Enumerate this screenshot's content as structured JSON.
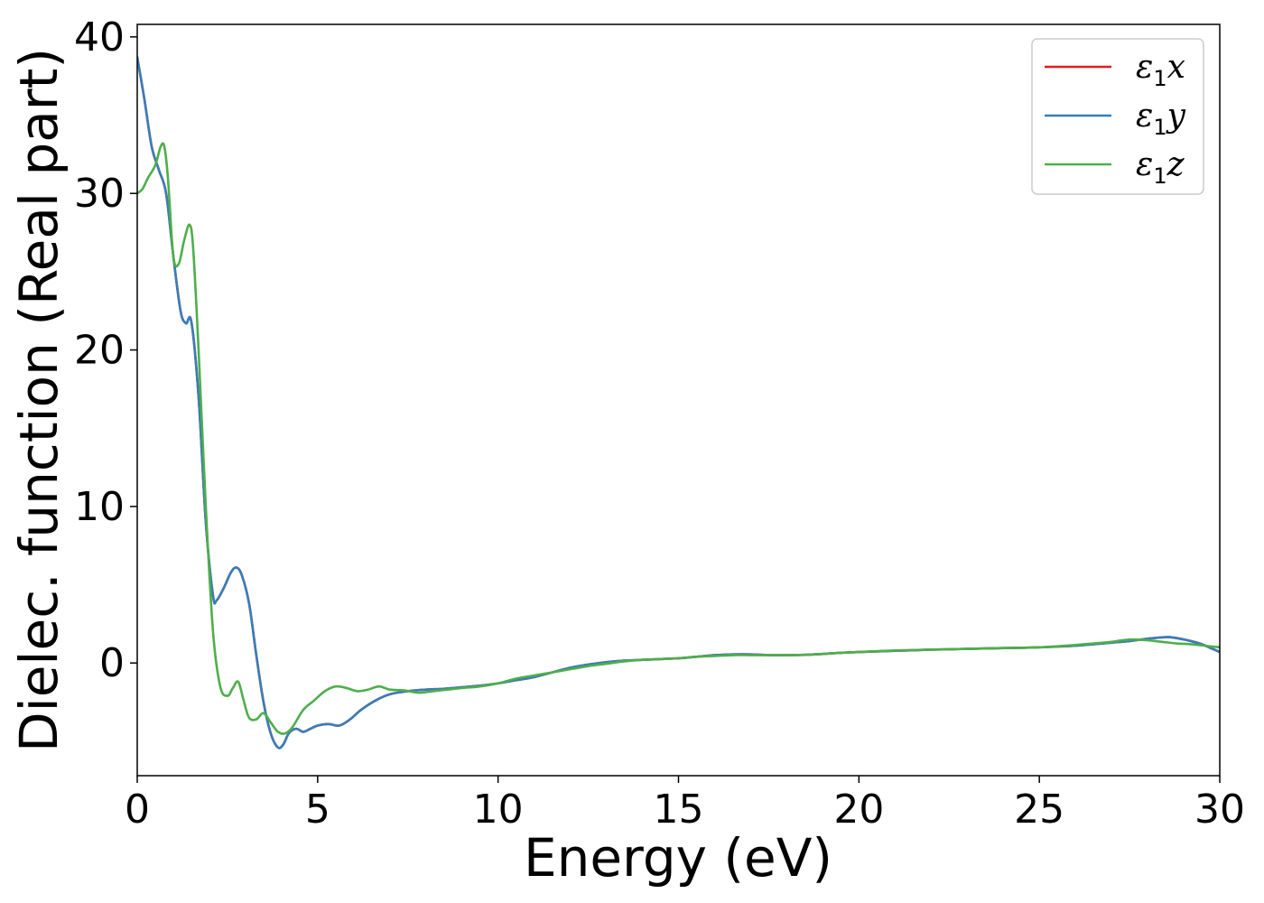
{
  "chart_data": {
    "type": "line",
    "title": "",
    "xlabel": "Energy (eV)",
    "ylabel": "Dielec. function (Real part)",
    "xlim": [
      0,
      30
    ],
    "ylim": [
      -7.2,
      40.8
    ],
    "xticks": [
      0,
      5,
      10,
      15,
      20,
      25,
      30
    ],
    "yticks": [
      0,
      10,
      20,
      30,
      40
    ],
    "grid": false,
    "legend_position": "top-right",
    "series": [
      {
        "name": "ε₁x",
        "legend_base": "ε",
        "legend_sub": "1",
        "legend_var": "x",
        "color": "#e41a1c",
        "x": [
          0,
          0.2,
          0.4,
          0.6,
          0.8,
          1.0,
          1.2,
          1.35,
          1.5,
          1.7,
          1.9,
          2.1,
          2.2,
          2.4,
          2.6,
          2.75,
          2.9,
          3.1,
          3.3,
          3.5,
          3.7,
          3.9,
          4.05,
          4.2,
          4.4,
          4.6,
          4.8,
          5.0,
          5.3,
          5.6,
          5.9,
          6.2,
          6.6,
          7.0,
          7.5,
          8.0,
          8.5,
          9.0,
          9.5,
          10.0,
          10.5,
          11.0,
          11.5,
          12.0,
          12.5,
          13.0,
          13.5,
          14.0,
          14.5,
          15.0,
          15.5,
          16.0,
          16.5,
          17.0,
          17.5,
          18.0,
          18.5,
          19.0,
          19.5,
          20.0,
          21.0,
          22.0,
          23.0,
          24.0,
          25.0,
          26.0,
          26.5,
          27.0,
          27.5,
          28.0,
          28.3,
          28.6,
          28.9,
          29.2,
          29.5,
          29.8,
          30.0
        ],
        "y": [
          38.7,
          36.0,
          33.0,
          31.5,
          30.0,
          26.0,
          22.5,
          21.7,
          21.8,
          17.0,
          9.0,
          4.3,
          4.0,
          4.8,
          5.8,
          6.1,
          5.6,
          3.8,
          0.5,
          -2.5,
          -4.5,
          -5.4,
          -5.2,
          -4.5,
          -4.2,
          -4.4,
          -4.2,
          -4.0,
          -3.9,
          -4.0,
          -3.6,
          -3.0,
          -2.4,
          -2.0,
          -1.8,
          -1.7,
          -1.65,
          -1.55,
          -1.45,
          -1.3,
          -1.1,
          -0.9,
          -0.6,
          -0.3,
          -0.1,
          0.05,
          0.15,
          0.2,
          0.25,
          0.3,
          0.4,
          0.5,
          0.55,
          0.55,
          0.5,
          0.5,
          0.52,
          0.58,
          0.65,
          0.7,
          0.78,
          0.85,
          0.9,
          0.95,
          1.0,
          1.1,
          1.2,
          1.3,
          1.4,
          1.55,
          1.62,
          1.65,
          1.55,
          1.4,
          1.2,
          0.9,
          0.7
        ]
      },
      {
        "name": "ε₁y",
        "legend_base": "ε",
        "legend_sub": "1",
        "legend_var": "y",
        "color": "#377eb8",
        "x": [
          0,
          0.2,
          0.4,
          0.6,
          0.8,
          1.0,
          1.2,
          1.35,
          1.5,
          1.7,
          1.9,
          2.1,
          2.2,
          2.4,
          2.6,
          2.75,
          2.9,
          3.1,
          3.3,
          3.5,
          3.7,
          3.9,
          4.05,
          4.2,
          4.4,
          4.6,
          4.8,
          5.0,
          5.3,
          5.6,
          5.9,
          6.2,
          6.6,
          7.0,
          7.5,
          8.0,
          8.5,
          9.0,
          9.5,
          10.0,
          10.5,
          11.0,
          11.5,
          12.0,
          12.5,
          13.0,
          13.5,
          14.0,
          14.5,
          15.0,
          15.5,
          16.0,
          16.5,
          17.0,
          17.5,
          18.0,
          18.5,
          19.0,
          19.5,
          20.0,
          21.0,
          22.0,
          23.0,
          24.0,
          25.0,
          26.0,
          26.5,
          27.0,
          27.5,
          28.0,
          28.3,
          28.6,
          28.9,
          29.2,
          29.5,
          29.8,
          30.0
        ],
        "y": [
          38.7,
          36.0,
          33.0,
          31.5,
          30.0,
          26.0,
          22.5,
          21.7,
          21.8,
          17.0,
          9.0,
          4.3,
          4.0,
          4.8,
          5.8,
          6.1,
          5.6,
          3.8,
          0.5,
          -2.5,
          -4.5,
          -5.4,
          -5.2,
          -4.5,
          -4.2,
          -4.4,
          -4.2,
          -4.0,
          -3.9,
          -4.0,
          -3.6,
          -3.0,
          -2.4,
          -2.0,
          -1.8,
          -1.7,
          -1.65,
          -1.55,
          -1.45,
          -1.3,
          -1.1,
          -0.9,
          -0.6,
          -0.3,
          -0.1,
          0.05,
          0.15,
          0.2,
          0.25,
          0.3,
          0.4,
          0.5,
          0.55,
          0.55,
          0.5,
          0.5,
          0.52,
          0.58,
          0.65,
          0.7,
          0.78,
          0.85,
          0.9,
          0.95,
          1.0,
          1.1,
          1.2,
          1.3,
          1.4,
          1.55,
          1.62,
          1.65,
          1.55,
          1.4,
          1.2,
          0.9,
          0.7
        ]
      },
      {
        "name": "ε₁z",
        "legend_base": "ε",
        "legend_sub": "1",
        "legend_var": "z",
        "color": "#4daf4a",
        "x": [
          0,
          0.15,
          0.3,
          0.5,
          0.65,
          0.75,
          0.85,
          1.0,
          1.15,
          1.3,
          1.45,
          1.55,
          1.7,
          1.9,
          2.1,
          2.3,
          2.5,
          2.65,
          2.8,
          2.95,
          3.1,
          3.3,
          3.5,
          3.7,
          3.9,
          4.1,
          4.3,
          4.6,
          4.9,
          5.2,
          5.5,
          5.8,
          6.1,
          6.4,
          6.7,
          7.0,
          7.4,
          7.8,
          8.2,
          8.6,
          9.0,
          9.5,
          10.0,
          10.5,
          11.0,
          11.5,
          12.0,
          12.5,
          13.0,
          13.5,
          14.0,
          14.5,
          15.0,
          15.5,
          16.0,
          16.5,
          17.0,
          17.5,
          18.0,
          18.5,
          19.0,
          19.5,
          20.0,
          21.0,
          22.0,
          23.0,
          24.0,
          25.0,
          26.0,
          26.5,
          27.0,
          27.3,
          27.6,
          28.0,
          28.4,
          28.8,
          29.2,
          29.6,
          30.0
        ],
        "y": [
          30.0,
          30.3,
          31.0,
          31.8,
          33.0,
          33.0,
          31.0,
          26.0,
          25.5,
          27.0,
          28.0,
          26.5,
          20.0,
          10.0,
          2.0,
          -1.5,
          -2.1,
          -1.6,
          -1.2,
          -2.4,
          -3.5,
          -3.6,
          -3.2,
          -3.8,
          -4.4,
          -4.5,
          -4.1,
          -3.0,
          -2.4,
          -1.8,
          -1.5,
          -1.6,
          -1.8,
          -1.7,
          -1.5,
          -1.7,
          -1.75,
          -1.9,
          -1.8,
          -1.7,
          -1.6,
          -1.5,
          -1.3,
          -1.0,
          -0.8,
          -0.6,
          -0.4,
          -0.2,
          -0.05,
          0.1,
          0.2,
          0.25,
          0.3,
          0.4,
          0.45,
          0.5,
          0.5,
          0.5,
          0.5,
          0.52,
          0.58,
          0.65,
          0.7,
          0.8,
          0.85,
          0.9,
          0.95,
          1.0,
          1.15,
          1.25,
          1.35,
          1.45,
          1.5,
          1.45,
          1.35,
          1.25,
          1.2,
          1.1,
          1.0
        ]
      }
    ]
  }
}
